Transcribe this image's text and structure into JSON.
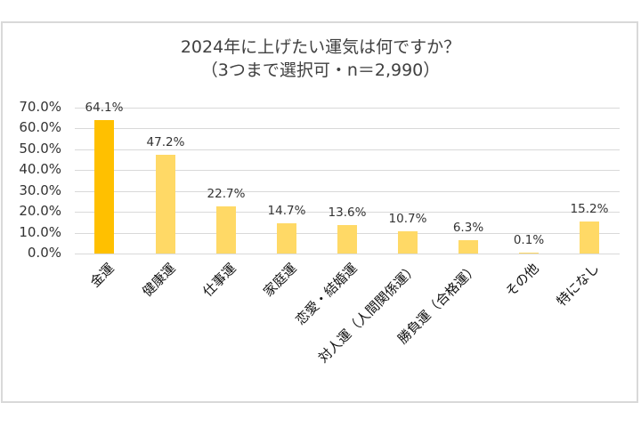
{
  "title": {
    "line1": "2024年に上げたい運気は何ですか？",
    "line2": "（3つまで選択可・n＝2,990）"
  },
  "colors": {
    "highlight_bar": "#ffc000",
    "bar": "#ffd966",
    "grid": "#d9d9d9",
    "border": "#d9d9d9"
  },
  "y_axis": {
    "ticks": [
      "70.0%",
      "60.0%",
      "50.0%",
      "40.0%",
      "30.0%",
      "20.0%",
      "10.0%",
      "0.0%"
    ]
  },
  "bars": [
    {
      "label": "金運",
      "value": "64.1%"
    },
    {
      "label": "健康運",
      "value": "47.2%"
    },
    {
      "label": "仕事運",
      "value": "22.7%"
    },
    {
      "label": "家庭運",
      "value": "14.7%"
    },
    {
      "label": "恋愛・結婚運",
      "value": "13.6%"
    },
    {
      "label": "対人運（人間関係運）",
      "value": "10.7%"
    },
    {
      "label": "勝負運（合格運）",
      "value": "6.3%"
    },
    {
      "label": "その他",
      "value": "0.1%"
    },
    {
      "label": "特になし",
      "value": "15.2%"
    }
  ],
  "chart_data": {
    "type": "bar",
    "title": "2024年に上げたい運気は何ですか？（3つまで選択可・n＝2,990）",
    "categories": [
      "金運",
      "健康運",
      "仕事運",
      "家庭運",
      "恋愛・結婚運",
      "対人運（人間関係運）",
      "勝負運（合格運）",
      "その他",
      "特になし"
    ],
    "values": [
      64.1,
      47.2,
      22.7,
      14.7,
      13.6,
      10.7,
      6.3,
      0.1,
      15.2
    ],
    "xlabel": "",
    "ylabel": "",
    "ylim": [
      0,
      70
    ],
    "yticks": [
      0,
      10,
      20,
      30,
      40,
      50,
      60,
      70
    ],
    "unit": "%",
    "grid": true,
    "legend": null,
    "highlighted_category": "金運"
  }
}
